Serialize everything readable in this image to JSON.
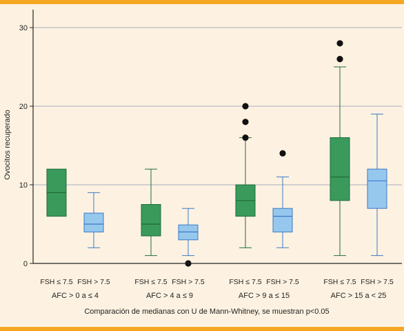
{
  "colors": {
    "frame_bar": "#f5a623",
    "background": "#fdf2e1",
    "grid": "#8d95b8",
    "axis": "#222222",
    "fsh_low_fill": "#3a9a5b",
    "fsh_low_stroke": "#1f6b3a",
    "fsh_high_fill": "#96c8ee",
    "fsh_high_stroke": "#3b79c4",
    "outlier": "#111111"
  },
  "chart_data": {
    "type": "box",
    "ylabel": "Ovocitos recuperado",
    "xlabel": "Comparación de medianas con U de Mann-Whitney, se muestran p<0.05",
    "ylim": [
      0,
      31
    ],
    "yticks": [
      0,
      10,
      20,
      30
    ],
    "grid": true,
    "groups": [
      {
        "label": "AFC > 0 a ≤ 4",
        "boxes": [
          {
            "name": "FSH ≤ 7.5",
            "series": "fsh_low",
            "q1": 6,
            "median": 9,
            "q3": 12
          },
          {
            "name": "FSH > 7.5",
            "series": "fsh_high",
            "min": 2,
            "q1": 4,
            "median": 5,
            "q3": 6.4,
            "max": 9
          }
        ]
      },
      {
        "label": "AFC > 4 a ≤ 9",
        "boxes": [
          {
            "name": "FSH ≤ 7.5",
            "series": "fsh_low",
            "min": 1,
            "q1": 3.5,
            "median": 5,
            "q3": 7.5,
            "max": 12
          },
          {
            "name": "FSH > 7.5",
            "series": "fsh_high",
            "min": 1,
            "q1": 3,
            "median": 4,
            "q3": 4.9,
            "max": 7,
            "outliers": [
              0
            ]
          }
        ]
      },
      {
        "label": "AFC > 9 a ≤ 15",
        "boxes": [
          {
            "name": "FSH ≤ 7.5",
            "series": "fsh_low",
            "min": 2,
            "q1": 6,
            "median": 8,
            "q3": 10,
            "max": 16,
            "outliers": [
              16,
              18,
              20
            ]
          },
          {
            "name": "FSH > 7.5",
            "series": "fsh_high",
            "min": 2,
            "q1": 4,
            "median": 6,
            "q3": 7,
            "max": 11,
            "outliers": [
              14
            ]
          }
        ]
      },
      {
        "label": "AFC > 15 a < 25",
        "boxes": [
          {
            "name": "FSH ≤ 7.5",
            "series": "fsh_low",
            "min": 1,
            "q1": 8,
            "median": 11,
            "q3": 16,
            "max": 25,
            "outliers": [
              26,
              28
            ]
          },
          {
            "name": "FSH > 7.5",
            "series": "fsh_high",
            "min": 1,
            "q1": 7,
            "median": 10.5,
            "q3": 12,
            "max": 19
          }
        ]
      }
    ]
  }
}
